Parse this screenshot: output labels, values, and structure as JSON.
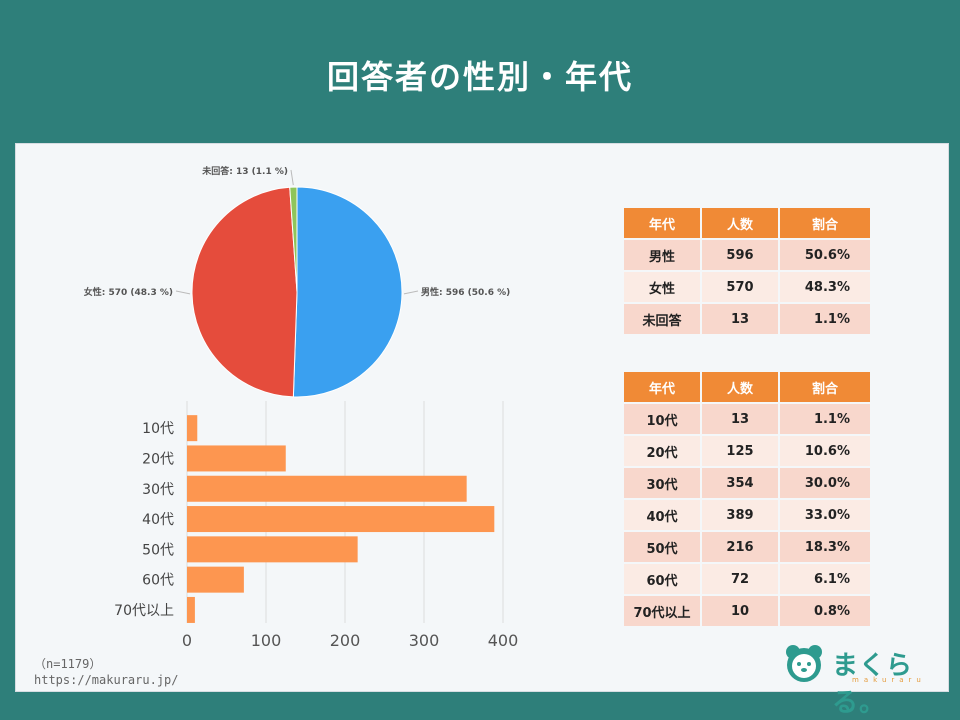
{
  "title": "回答者の性別・年代",
  "chart_data": [
    {
      "type": "pie",
      "slices": [
        {
          "label": "男性",
          "value": 596,
          "percent": 50.6,
          "color": "#3aa0f0",
          "text": "男性: 596 (50.6 %)"
        },
        {
          "label": "女性",
          "value": 570,
          "percent": 48.3,
          "color": "#e54c3c",
          "text": "女性: 570 (48.3 %)"
        },
        {
          "label": "未回答",
          "value": 13,
          "percent": 1.1,
          "color": "#8fc55a",
          "text": "未回答: 13 (1.1 %)"
        }
      ]
    },
    {
      "type": "bar",
      "orientation": "horizontal",
      "categories": [
        "10代",
        "20代",
        "30代",
        "40代",
        "50代",
        "60代",
        "70代以上"
      ],
      "values": [
        13,
        125,
        354,
        389,
        216,
        72,
        10
      ],
      "xlim": [
        0,
        400
      ],
      "xticks": [
        "0",
        "100",
        "200",
        "300",
        "400"
      ],
      "color": "#fd9650",
      "grid": true
    }
  ],
  "gender_table": {
    "headers": [
      "年代",
      "人数",
      "割合"
    ],
    "rows": [
      [
        "男性",
        "596",
        "50.6%"
      ],
      [
        "女性",
        "570",
        "48.3%"
      ],
      [
        "未回答",
        "13",
        "1.1%"
      ]
    ]
  },
  "age_table": {
    "headers": [
      "年代",
      "人数",
      "割合"
    ],
    "rows": [
      [
        "10代",
        "13",
        "1.1%"
      ],
      [
        "20代",
        "125",
        "10.6%"
      ],
      [
        "30代",
        "354",
        "30.0%"
      ],
      [
        "40代",
        "389",
        "33.0%"
      ],
      [
        "50代",
        "216",
        "18.3%"
      ],
      [
        "60代",
        "72",
        "6.1%"
      ],
      [
        "70代以上",
        "10",
        "0.8%"
      ]
    ]
  },
  "footer": {
    "n": "（n=1179）",
    "url": "https://makuraru.jp/"
  },
  "logo": {
    "name": "まくらる。",
    "sub": "makuraru"
  }
}
